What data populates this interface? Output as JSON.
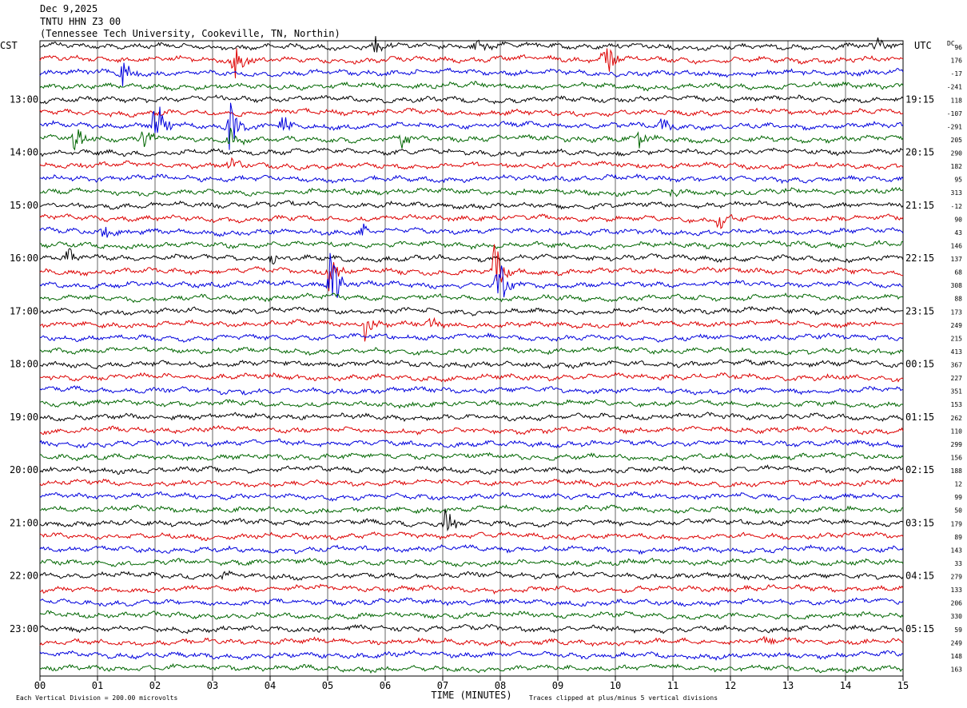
{
  "header": {
    "date": "Dec 9,2025",
    "station": "TNTU HHN Z3 00",
    "location": "(Tennessee Tech University, Cookeville, TN, Northin)"
  },
  "chart_data": {
    "type": "line",
    "title": "TNTU HHN Z3 00",
    "xlabel": "TIME (MINUTES)",
    "left_timezone": "CST",
    "right_timezone": "UTC",
    "dc_label": "DC",
    "x_ticks": [
      "00",
      "01",
      "02",
      "03",
      "04",
      "05",
      "06",
      "07",
      "08",
      "09",
      "10",
      "11",
      "12",
      "13",
      "14",
      "15"
    ],
    "xlim": [
      0,
      15
    ],
    "left_hour_labels": [
      "13:00",
      "14:00",
      "15:00",
      "16:00",
      "17:00",
      "18:00",
      "19:00",
      "20:00",
      "21:00",
      "22:00",
      "23:00"
    ],
    "right_hour_labels": [
      "19:15",
      "20:15",
      "21:15",
      "22:15",
      "23:15",
      "00:15",
      "01:15",
      "02:15",
      "03:15",
      "04:15",
      "05:15"
    ],
    "dc_offsets": [
      96,
      176,
      -17,
      -241,
      118,
      -107,
      -291,
      205,
      290,
      182,
      95,
      313,
      -12,
      90,
      43,
      146,
      137,
      68,
      308,
      88,
      173,
      249,
      215,
      413,
      367,
      227,
      351,
      153,
      262,
      110,
      299,
      156,
      188,
      12,
      99,
      50,
      179,
      89,
      143,
      33,
      279,
      133,
      206,
      330,
      59,
      249,
      148,
      163
    ],
    "trace_colors": [
      "#000000",
      "#dd0000",
      "#0000dd",
      "#006600"
    ],
    "grid": "vertical-minutes",
    "footer_left": "Each Vertical Division =  200.00 microvolts",
    "footer_right": "Traces clipped at plus/minus 5 vertical divisions",
    "events": [
      {
        "trace": 0,
        "minute": 5.8,
        "amp": 1.0
      },
      {
        "trace": 0,
        "minute": 7.6,
        "amp": 1.1
      },
      {
        "trace": 0,
        "minute": 14.5,
        "amp": 0.7
      },
      {
        "trace": 1,
        "minute": 3.35,
        "amp": 2.6
      },
      {
        "trace": 1,
        "minute": 9.8,
        "amp": 2.2
      },
      {
        "trace": 2,
        "minute": 1.4,
        "amp": 1.8
      },
      {
        "trace": 6,
        "minute": 2.0,
        "amp": 2.3
      },
      {
        "trace": 6,
        "minute": 3.3,
        "amp": 2.2
      },
      {
        "trace": 6,
        "minute": 4.2,
        "amp": 1.0
      },
      {
        "trace": 6,
        "minute": 10.8,
        "amp": 0.8
      },
      {
        "trace": 7,
        "minute": 0.6,
        "amp": 1.1
      },
      {
        "trace": 7,
        "minute": 1.8,
        "amp": 1.2
      },
      {
        "trace": 7,
        "minute": 3.3,
        "amp": 1.1
      },
      {
        "trace": 7,
        "minute": 6.3,
        "amp": 0.9
      },
      {
        "trace": 7,
        "minute": 10.4,
        "amp": 0.8
      },
      {
        "trace": 9,
        "minute": 3.3,
        "amp": 0.6
      },
      {
        "trace": 11,
        "minute": 11.0,
        "amp": 0.7
      },
      {
        "trace": 13,
        "minute": 11.8,
        "amp": 1.1
      },
      {
        "trace": 14,
        "minute": 1.1,
        "amp": 0.8
      },
      {
        "trace": 14,
        "minute": 5.6,
        "amp": 0.8
      },
      {
        "trace": 16,
        "minute": 0.45,
        "amp": 1.0
      },
      {
        "trace": 16,
        "minute": 4.0,
        "amp": 0.6
      },
      {
        "trace": 17,
        "minute": 5.0,
        "amp": 1.8
      },
      {
        "trace": 17,
        "minute": 7.9,
        "amp": 2.4
      },
      {
        "trace": 18,
        "minute": 5.05,
        "amp": 3.4
      },
      {
        "trace": 18,
        "minute": 7.95,
        "amp": 3.2
      },
      {
        "trace": 21,
        "minute": 5.65,
        "amp": 1.2
      },
      {
        "trace": 21,
        "minute": 6.8,
        "amp": 0.5
      },
      {
        "trace": 36,
        "minute": 7.05,
        "amp": 1.5
      },
      {
        "trace": 40,
        "minute": 3.2,
        "amp": 0.4
      },
      {
        "trace": 45,
        "minute": 12.6,
        "amp": 0.5
      }
    ]
  }
}
